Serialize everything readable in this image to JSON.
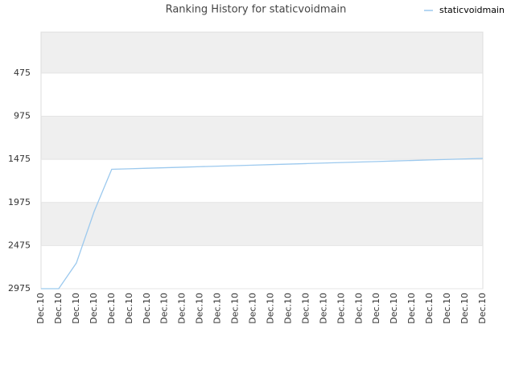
{
  "chart_data": {
    "type": "line",
    "title": "Ranking History for staticvoidmain",
    "categories": [
      "Dec.10",
      "Dec.10",
      "Dec.10",
      "Dec.10",
      "Dec.10",
      "Dec.10",
      "Dec.10",
      "Dec.10",
      "Dec.10",
      "Dec.10",
      "Dec.10",
      "Dec.10",
      "Dec.10",
      "Dec.10",
      "Dec.10",
      "Dec.10",
      "Dec.10",
      "Dec.10",
      "Dec.10",
      "Dec.10",
      "Dec.10",
      "Dec.10",
      "Dec.10",
      "Dec.10",
      "Dec.10",
      "Dec.10"
    ],
    "series": [
      {
        "name": "staticvoidmain",
        "color": "#9cc9ee",
        "values": [
          2975,
          2975,
          2677,
          2082,
          1590,
          1584,
          1578,
          1572,
          1566,
          1560,
          1554,
          1548,
          1542,
          1536,
          1530,
          1524,
          1518,
          1512,
          1506,
          1500,
          1494,
          1488,
          1482,
          1476,
          1470,
          1464
        ]
      }
    ],
    "ylim": [
      2975,
      0
    ],
    "yticks": [
      475,
      975,
      1475,
      1975,
      2475,
      2975
    ],
    "grid": true,
    "legend": "top-right"
  }
}
